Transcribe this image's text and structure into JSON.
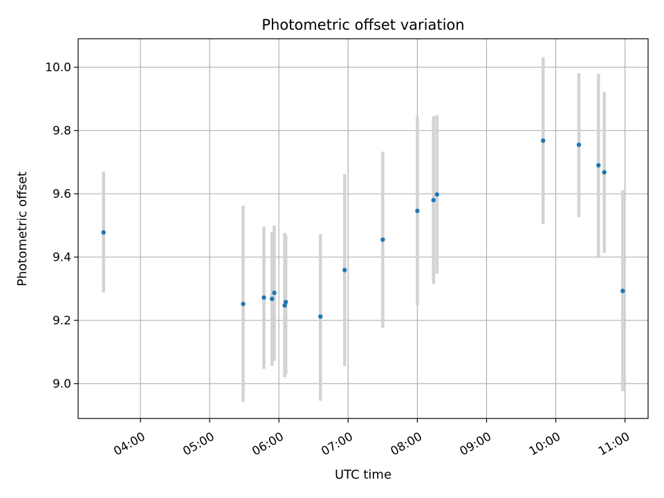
{
  "chart_data": {
    "type": "scatter",
    "title": "Photometric offset variation",
    "xlabel": "UTC time",
    "ylabel": "Photometric offset",
    "x_tick_labels": [
      "04:00",
      "05:00",
      "06:00",
      "07:00",
      "08:00",
      "09:00",
      "10:00",
      "11:00"
    ],
    "y_tick_labels": [
      "9.0",
      "9.2",
      "9.4",
      "9.6",
      "9.8",
      "10.0"
    ],
    "x_ticks": [
      "04:00",
      "05:00",
      "06:00",
      "07:00",
      "08:00",
      "09:00",
      "10:00",
      "11:00"
    ],
    "y_ticks": [
      9.0,
      9.2,
      9.4,
      9.6,
      9.8,
      10.0
    ],
    "xlim": [
      "03:06",
      "11:20"
    ],
    "ylim": [
      8.89,
      10.09
    ],
    "grid": true,
    "series": [
      {
        "points": [
          {
            "x": "03:28",
            "y": 9.478,
            "ylow": 9.288,
            "yhigh": 9.67
          },
          {
            "x": "05:29",
            "y": 9.252,
            "ylow": 8.942,
            "yhigh": 9.562
          },
          {
            "x": "05:47",
            "y": 9.272,
            "ylow": 9.047,
            "yhigh": 9.496
          },
          {
            "x": "05:54",
            "y": 9.268,
            "ylow": 9.056,
            "yhigh": 9.48
          },
          {
            "x": "05:56",
            "y": 9.287,
            "ylow": 9.072,
            "yhigh": 9.5
          },
          {
            "x": "06:05",
            "y": 9.247,
            "ylow": 9.02,
            "yhigh": 9.476
          },
          {
            "x": "06:06",
            "y": 9.258,
            "ylow": 9.03,
            "yhigh": 9.47
          },
          {
            "x": "06:36",
            "y": 9.212,
            "ylow": 8.946,
            "yhigh": 9.473
          },
          {
            "x": "06:57",
            "y": 9.359,
            "ylow": 9.056,
            "yhigh": 9.663
          },
          {
            "x": "07:30",
            "y": 9.455,
            "ylow": 9.176,
            "yhigh": 9.733
          },
          {
            "x": "08:00",
            "y": 9.546,
            "ylow": 9.248,
            "yhigh": 9.844
          },
          {
            "x": "08:14",
            "y": 9.58,
            "ylow": 9.315,
            "yhigh": 9.845
          },
          {
            "x": "08:17",
            "y": 9.598,
            "ylow": 9.348,
            "yhigh": 9.848
          },
          {
            "x": "09:49",
            "y": 9.768,
            "ylow": 9.505,
            "yhigh": 10.031
          },
          {
            "x": "10:20",
            "y": 9.755,
            "ylow": 9.526,
            "yhigh": 9.981
          },
          {
            "x": "10:37",
            "y": 9.69,
            "ylow": 9.401,
            "yhigh": 9.979
          },
          {
            "x": "10:42",
            "y": 9.668,
            "ylow": 9.413,
            "yhigh": 9.922
          },
          {
            "x": "10:58",
            "y": 9.293,
            "ylow": 8.976,
            "yhigh": 9.611
          }
        ]
      }
    ],
    "colors": {
      "marker": "#1f77b4",
      "errorbar": "#d3d3d3",
      "grid": "#b0b0b0",
      "axes": "#000000"
    }
  }
}
